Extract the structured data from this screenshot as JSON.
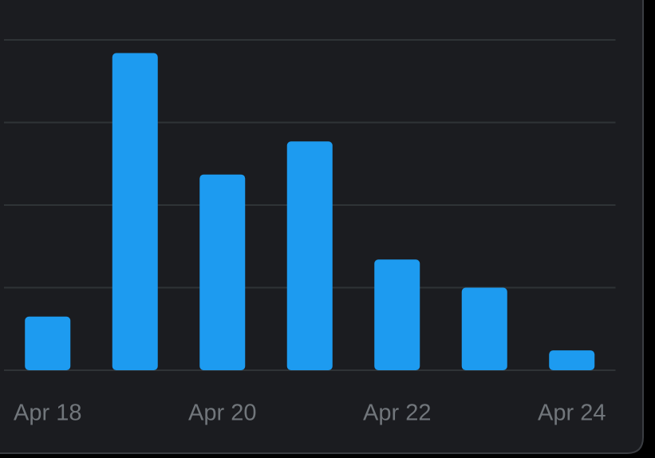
{
  "chart_data": {
    "type": "bar",
    "categories": [
      "Apr 18",
      null,
      "Apr 20",
      null,
      "Apr 22",
      null,
      "Apr 24"
    ],
    "values": [
      0.65,
      3.84,
      2.37,
      2.77,
      1.34,
      1.0,
      0.24
    ],
    "color": "#1d9bf0",
    "ylim": [
      0,
      4
    ],
    "yticks": [
      0,
      1,
      2,
      3,
      4
    ],
    "grid": true
  }
}
